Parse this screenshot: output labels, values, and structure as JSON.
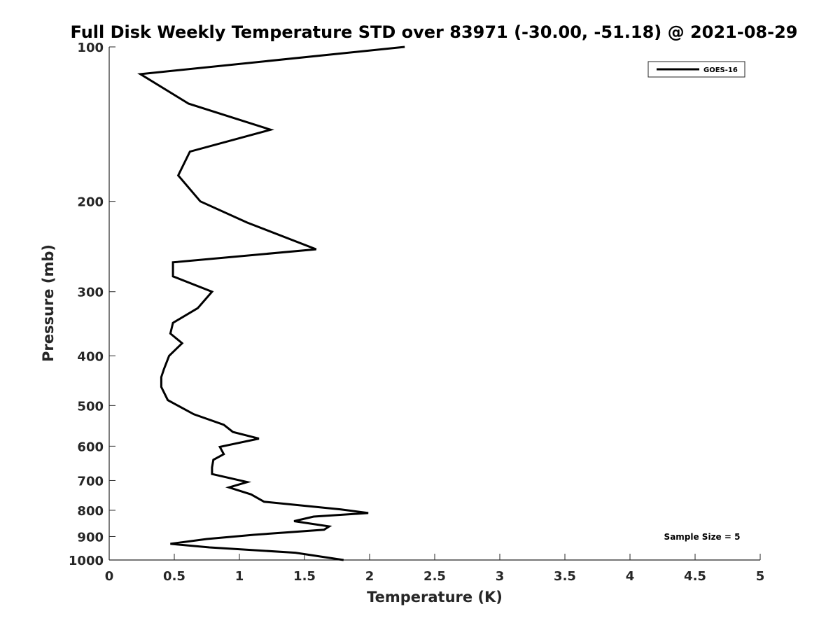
{
  "chart_data": {
    "type": "line",
    "title": "Full Disk Weekly Temperature STD over 83971 (-30.00, -51.18) @ 2021-08-29",
    "xlabel": "Temperature (K)",
    "ylabel": "Pressure (mb)",
    "xlim": [
      0,
      5
    ],
    "ylim": [
      100,
      1000
    ],
    "y_scale": "log",
    "y_reversed": true,
    "x_ticks": [
      "0",
      "0.5",
      "1",
      "1.5",
      "2",
      "2.5",
      "3",
      "3.5",
      "4",
      "4.5",
      "5"
    ],
    "y_ticks": [
      "100",
      "200",
      "300",
      "400",
      "500",
      "600",
      "700",
      "800",
      "900",
      "1000"
    ],
    "grid": false,
    "legend_position": "top-right",
    "annotation": "Sample Size = 5",
    "series": [
      {
        "name": "GOES-16",
        "color": "#000000",
        "x": [
          2.27,
          0.24,
          0.61,
          1.24,
          0.62,
          0.53,
          0.7,
          1.06,
          1.59,
          0.49,
          0.49,
          0.79,
          0.68,
          0.49,
          0.47,
          0.56,
          0.46,
          0.42,
          0.4,
          0.4,
          0.45,
          0.65,
          0.88,
          0.95,
          1.15,
          0.85,
          0.88,
          0.8,
          0.79,
          0.79,
          1.06,
          0.92,
          1.09,
          1.19,
          1.78,
          1.99,
          1.57,
          1.42,
          1.69,
          1.65,
          1.11,
          0.75,
          0.47,
          0.77,
          1.43,
          1.8
        ],
        "y": [
          100,
          113,
          129,
          145,
          160,
          178,
          200,
          220,
          248,
          263,
          280,
          300,
          323,
          345,
          362,
          378,
          400,
          425,
          440,
          460,
          488,
          520,
          545,
          563,
          580,
          602,
          622,
          638,
          660,
          680,
          705,
          722,
          745,
          770,
          797,
          810,
          823,
          840,
          860,
          873,
          893,
          910,
          930,
          945,
          968,
          1000
        ]
      }
    ]
  }
}
